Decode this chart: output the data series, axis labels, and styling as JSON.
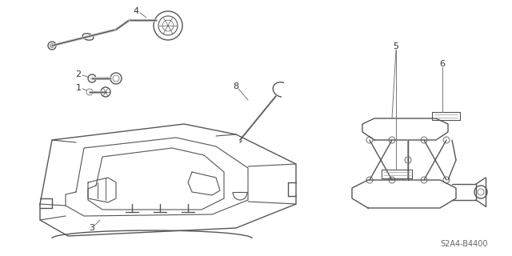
{
  "background_color": "#ffffff",
  "part_number": "S2A4-B4400",
  "line_color": "#555555",
  "label_color": "#333333",
  "fig_width": 6.4,
  "fig_height": 3.2,
  "dpi": 100
}
